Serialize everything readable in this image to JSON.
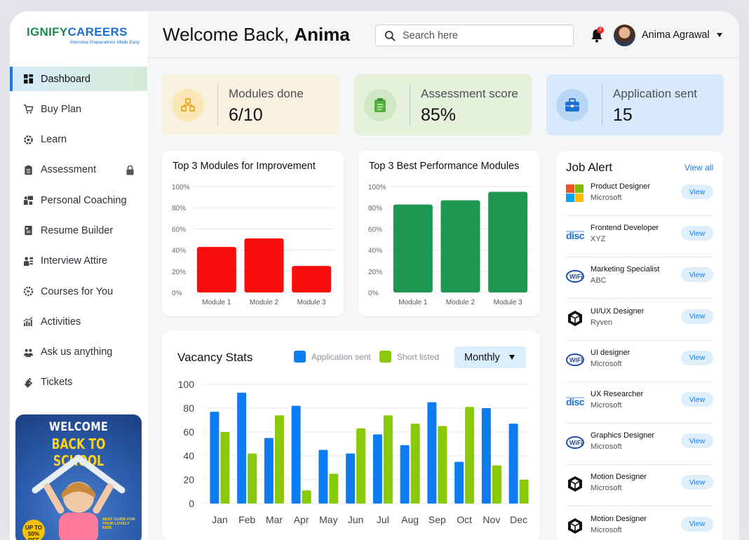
{
  "brand": {
    "logo_main_a": "IGNIFY",
    "logo_main_b": "CAREERS",
    "logo_tagline": "Interview Preparations Made Easy"
  },
  "sidebar": {
    "items": [
      {
        "label": "Dashboard",
        "icon": "dashboard-icon",
        "active": true
      },
      {
        "label": "Buy Plan",
        "icon": "cart-icon"
      },
      {
        "label": "Learn",
        "icon": "learn-icon"
      },
      {
        "label": "Assessment",
        "icon": "clipboard-icon",
        "locked": true
      },
      {
        "label": "Personal Coaching",
        "icon": "coaching-icon"
      },
      {
        "label": "Resume Builder",
        "icon": "resume-icon"
      },
      {
        "label": "Interview Attire",
        "icon": "attire-icon"
      },
      {
        "label": "Courses for You",
        "icon": "courses-icon"
      },
      {
        "label": "Activities",
        "icon": "activities-icon"
      },
      {
        "label": "Ask us anything",
        "icon": "chat-icon"
      },
      {
        "label": "Tickets",
        "icon": "ticket-icon"
      }
    ],
    "promo": {
      "line1": "WELCOME",
      "line2": "BACK TO SCHOOL",
      "badge": "UP TO 50% OFF",
      "side_note": "BEST GUIDE FOR YOUR LOVELY KIDS"
    }
  },
  "header": {
    "welcome_prefix": "Welcome Back, ",
    "welcome_name": "Anima",
    "search_placeholder": "Search here",
    "notification_count": "2",
    "user_name": "Anima Agrawal"
  },
  "stats": [
    {
      "label": "Modules done",
      "value": "6/10",
      "bg": "#f8f1df",
      "icon_bg": "#fbe6b6",
      "icon": "modules-icon"
    },
    {
      "label": "Assessment score",
      "value": "85%",
      "bg": "#e6f1dc",
      "icon_bg": "#cde8c2",
      "icon": "clipboard-icon"
    },
    {
      "label": "Application sent",
      "value": "15",
      "bg": "#d8e9fb",
      "icon_bg": "#b8d7f7",
      "icon": "briefcase-icon"
    }
  ],
  "chart_data": [
    {
      "type": "bar",
      "title": "Top 3 Modules for Improvement",
      "categories": [
        "Module 1",
        "Module 2",
        "Module 3"
      ],
      "values": [
        43,
        51,
        25
      ],
      "ylim": [
        0,
        100
      ],
      "yticks": [
        "100%",
        "80%",
        "60%",
        "40%",
        "20%",
        "0%"
      ],
      "color": "#f80d0d"
    },
    {
      "type": "bar",
      "title": "Top 3 Best Performance Modules",
      "categories": [
        "Module 1",
        "Module 2",
        "Module 3"
      ],
      "values": [
        83,
        87,
        95
      ],
      "ylim": [
        0,
        100
      ],
      "yticks": [
        "100%",
        "80%",
        "60%",
        "40%",
        "20%",
        "0%"
      ],
      "color": "#1f9651"
    },
    {
      "type": "bar",
      "title": "Vacancy Stats",
      "categories": [
        "Jan",
        "Feb",
        "Mar",
        "Apr",
        "May",
        "Jun",
        "Jul",
        "Aug",
        "Sep",
        "Oct",
        "Nov",
        "Dec"
      ],
      "series": [
        {
          "name": "Application sent",
          "color": "#0d7cf2",
          "values": [
            77,
            93,
            55,
            82,
            45,
            42,
            58,
            49,
            85,
            35,
            80,
            67
          ]
        },
        {
          "name": "Short listed",
          "color": "#8ac80a",
          "values": [
            60,
            42,
            74,
            11,
            25,
            63,
            74,
            67,
            65,
            81,
            32,
            20
          ]
        }
      ],
      "ylim": [
        0,
        100
      ],
      "yticks": [
        "100",
        "80",
        "60",
        "40",
        "20",
        "0"
      ],
      "period": "Monthly"
    }
  ],
  "job_alert": {
    "title": "Job Alert",
    "view_all": "View all",
    "button_label": "View",
    "jobs": [
      {
        "title": "Product Designer",
        "company": "Microsoft",
        "logo": "microsoft-logo-icon"
      },
      {
        "title": "Frontend Developer",
        "company": "XYZ",
        "logo": "disc-logo-icon"
      },
      {
        "title": "Marketing Specialist",
        "company": "ABC",
        "logo": "wifi-logo-icon"
      },
      {
        "title": "UI/UX Designer",
        "company": "Ryven",
        "logo": "cube-logo-icon"
      },
      {
        "title": "UI designer",
        "company": "Microsoft",
        "logo": "wifi-logo-icon"
      },
      {
        "title": "UX Researcher",
        "company": "Microsoft",
        "logo": "disc-logo-icon"
      },
      {
        "title": "Graphics Designer",
        "company": "Microsoft",
        "logo": "wifi-logo-icon"
      },
      {
        "title": "Motion Designer",
        "company": "Microsoft",
        "logo": "cube-logo-icon"
      },
      {
        "title": "Motion Designer",
        "company": "Microsoft",
        "logo": "cube-logo-icon"
      }
    ]
  }
}
